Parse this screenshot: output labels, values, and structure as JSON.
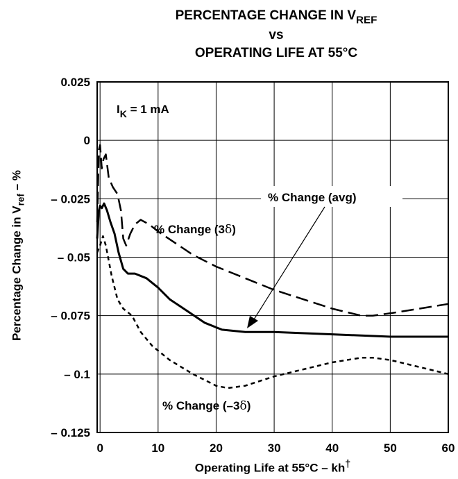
{
  "chart_data": {
    "type": "line",
    "title": {
      "line1_main": "PERCENTAGE CHANGE IN V",
      "line1_sub": "REF",
      "line2": "vs",
      "line3": "OPERATING LIFE AT 55°C"
    },
    "xlabel": {
      "main": "Operating Life at 55°C – kh",
      "sup": "†"
    },
    "ylabel": {
      "main": "Percentage Change in V",
      "sub": "ref",
      "tail": " – %"
    },
    "condition": {
      "main": "I",
      "sub": "K",
      "tail": " = 1 mA"
    },
    "xlim": [
      -0.5,
      60
    ],
    "ylim": [
      -0.125,
      0.025
    ],
    "x_ticks": [
      0,
      10,
      20,
      30,
      40,
      50,
      60
    ],
    "x_tick_labels": [
      "0",
      "10",
      "20",
      "30",
      "40",
      "50",
      "60"
    ],
    "y_ticks": [
      0.025,
      0,
      -0.025,
      -0.05,
      -0.075,
      -0.1,
      -0.125
    ],
    "y_tick_labels": [
      "0.025",
      "0",
      "– 0.025",
      "– 0.05",
      "– 0.075",
      "– 0.1",
      "– 0.125"
    ],
    "grid": true,
    "series": [
      {
        "name": "% Change (3δ)",
        "style": "long-dash",
        "x": [
          -0.5,
          -0.2,
          0,
          0.3,
          0.6,
          1,
          1.5,
          2.2,
          3,
          3.6,
          4,
          4.5,
          5.2,
          6,
          7,
          8.5,
          10,
          13,
          16,
          20,
          25,
          30,
          35,
          40,
          45,
          47,
          50,
          55,
          60
        ],
        "y": [
          -0.035,
          -0.004,
          -0.002,
          -0.012,
          -0.008,
          -0.006,
          -0.016,
          -0.02,
          -0.023,
          -0.03,
          -0.042,
          -0.045,
          -0.04,
          -0.036,
          -0.034,
          -0.036,
          -0.039,
          -0.044,
          -0.049,
          -0.054,
          -0.059,
          -0.064,
          -0.068,
          -0.072,
          -0.075,
          -0.075,
          -0.074,
          -0.072,
          -0.07
        ]
      },
      {
        "name": "% Change (avg)",
        "style": "solid",
        "x": [
          -0.5,
          -0.2,
          0,
          0.3,
          0.7,
          1.2,
          1.8,
          2.5,
          3.2,
          4,
          4.8,
          6,
          8,
          10,
          12,
          15,
          18,
          21,
          25,
          30,
          40,
          50,
          60
        ],
        "y": [
          -0.042,
          -0.03,
          -0.028,
          -0.029,
          -0.027,
          -0.03,
          -0.035,
          -0.04,
          -0.048,
          -0.055,
          -0.057,
          -0.057,
          -0.059,
          -0.063,
          -0.068,
          -0.073,
          -0.078,
          -0.081,
          -0.082,
          -0.082,
          -0.083,
          -0.084,
          -0.084
        ]
      },
      {
        "name": "% Change (–3δ)",
        "style": "short-dash",
        "x": [
          -0.5,
          0,
          0.5,
          1,
          2,
          3,
          4,
          5.5,
          7,
          9,
          12,
          16,
          20,
          22,
          25,
          30,
          35,
          40,
          45,
          47,
          50,
          55,
          60
        ],
        "y": [
          -0.048,
          -0.045,
          -0.041,
          -0.045,
          -0.058,
          -0.068,
          -0.072,
          -0.075,
          -0.082,
          -0.088,
          -0.094,
          -0.1,
          -0.105,
          -0.106,
          -0.105,
          -0.101,
          -0.098,
          -0.095,
          -0.093,
          -0.093,
          -0.094,
          -0.097,
          -0.1
        ]
      }
    ],
    "annotations": {
      "avg_label": "% Change  (avg)",
      "plus3_label_main": "% Change  (3",
      "plus3_label_sym": "δ",
      "minus3_label_main": "% Change  (–3",
      "minus3_label_sym": "δ",
      "close_paren": ")"
    }
  }
}
